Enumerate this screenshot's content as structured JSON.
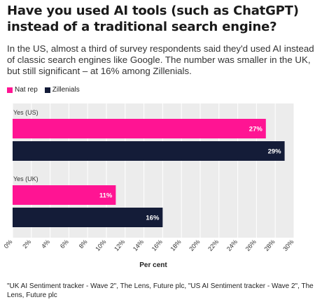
{
  "title": "Have you used AI tools (such as ChatGPT) instead of a traditional search engine?",
  "subtitle": "In the US, almost a third of survey respondents said they'd used AI instead of classic search engines like Google. The number was smaller in the UK, but still significant – at 16% among Zillenials.",
  "source": "\"UK AI Sentiment tracker - Wave 2\", The Lens, Future plc, \"US AI Sentiment tracker - Wave 2\", The Lens, Future plc",
  "colors": {
    "nat_rep": "#ff1493",
    "zillenials": "#141c38",
    "plot_bg": "#ececec",
    "grid": "#ffffff"
  },
  "chart_data": {
    "type": "bar",
    "orientation": "horizontal",
    "categories": [
      "Yes (US)",
      "Yes (UK)"
    ],
    "series": [
      {
        "name": "Nat rep",
        "color": "#ff1493",
        "values": [
          27,
          11
        ],
        "labels": [
          "27%",
          "11%"
        ]
      },
      {
        "name": "Zillenials",
        "color": "#141c38",
        "values": [
          29,
          16
        ],
        "labels": [
          "29%",
          "16%"
        ]
      }
    ],
    "xlabel": "Per cent",
    "xlim": [
      0,
      30
    ],
    "xticks": [
      0,
      2,
      4,
      6,
      8,
      10,
      12,
      14,
      16,
      18,
      20,
      22,
      24,
      26,
      28,
      30
    ],
    "xtick_labels": [
      "0%",
      "2%",
      "4%",
      "6%",
      "8%",
      "10%",
      "12%",
      "14%",
      "16%",
      "18%",
      "20%",
      "22%",
      "24%",
      "26%",
      "28%",
      "30%"
    ],
    "grid": true,
    "legend": "top-left"
  }
}
